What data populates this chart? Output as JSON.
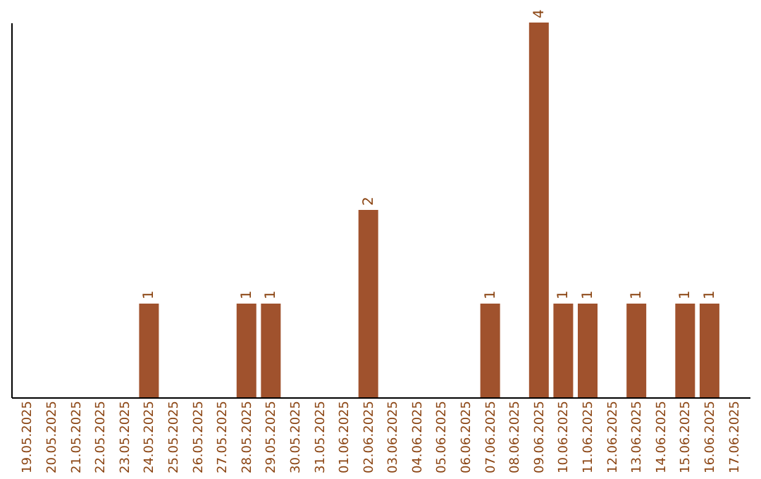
{
  "chart_data": {
    "type": "bar",
    "categories": [
      "19.05.2025",
      "20.05.2025",
      "21.05.2025",
      "22.05.2025",
      "23.05.2025",
      "24.05.2025",
      "25.05.2025",
      "26.05.2025",
      "27.05.2025",
      "28.05.2025",
      "29.05.2025",
      "30.05.2025",
      "31.05.2025",
      "01.06.2025",
      "02.06.2025",
      "03.06.2025",
      "04.06.2025",
      "05.06.2025",
      "06.06.2025",
      "07.06.2025",
      "08.06.2025",
      "09.06.2025",
      "10.06.2025",
      "11.06.2025",
      "12.06.2025",
      "13.06.2025",
      "14.06.2025",
      "15.06.2025",
      "16.06.2025",
      "17.06.2025"
    ],
    "values": [
      0,
      0,
      0,
      0,
      0,
      1,
      0,
      0,
      0,
      1,
      1,
      0,
      0,
      0,
      2,
      0,
      0,
      0,
      0,
      1,
      0,
      4,
      1,
      1,
      0,
      1,
      0,
      1,
      1,
      0
    ],
    "value_labels": [
      null,
      null,
      null,
      null,
      null,
      "1",
      null,
      null,
      null,
      "1",
      "1",
      null,
      null,
      null,
      "2",
      null,
      null,
      null,
      null,
      "1",
      null,
      "4",
      "1",
      "1",
      null,
      "1",
      null,
      "1",
      "1",
      null
    ],
    "color": "#a0522d",
    "ylim": [
      0,
      4
    ],
    "tick_labels": "x",
    "grid": false
  }
}
